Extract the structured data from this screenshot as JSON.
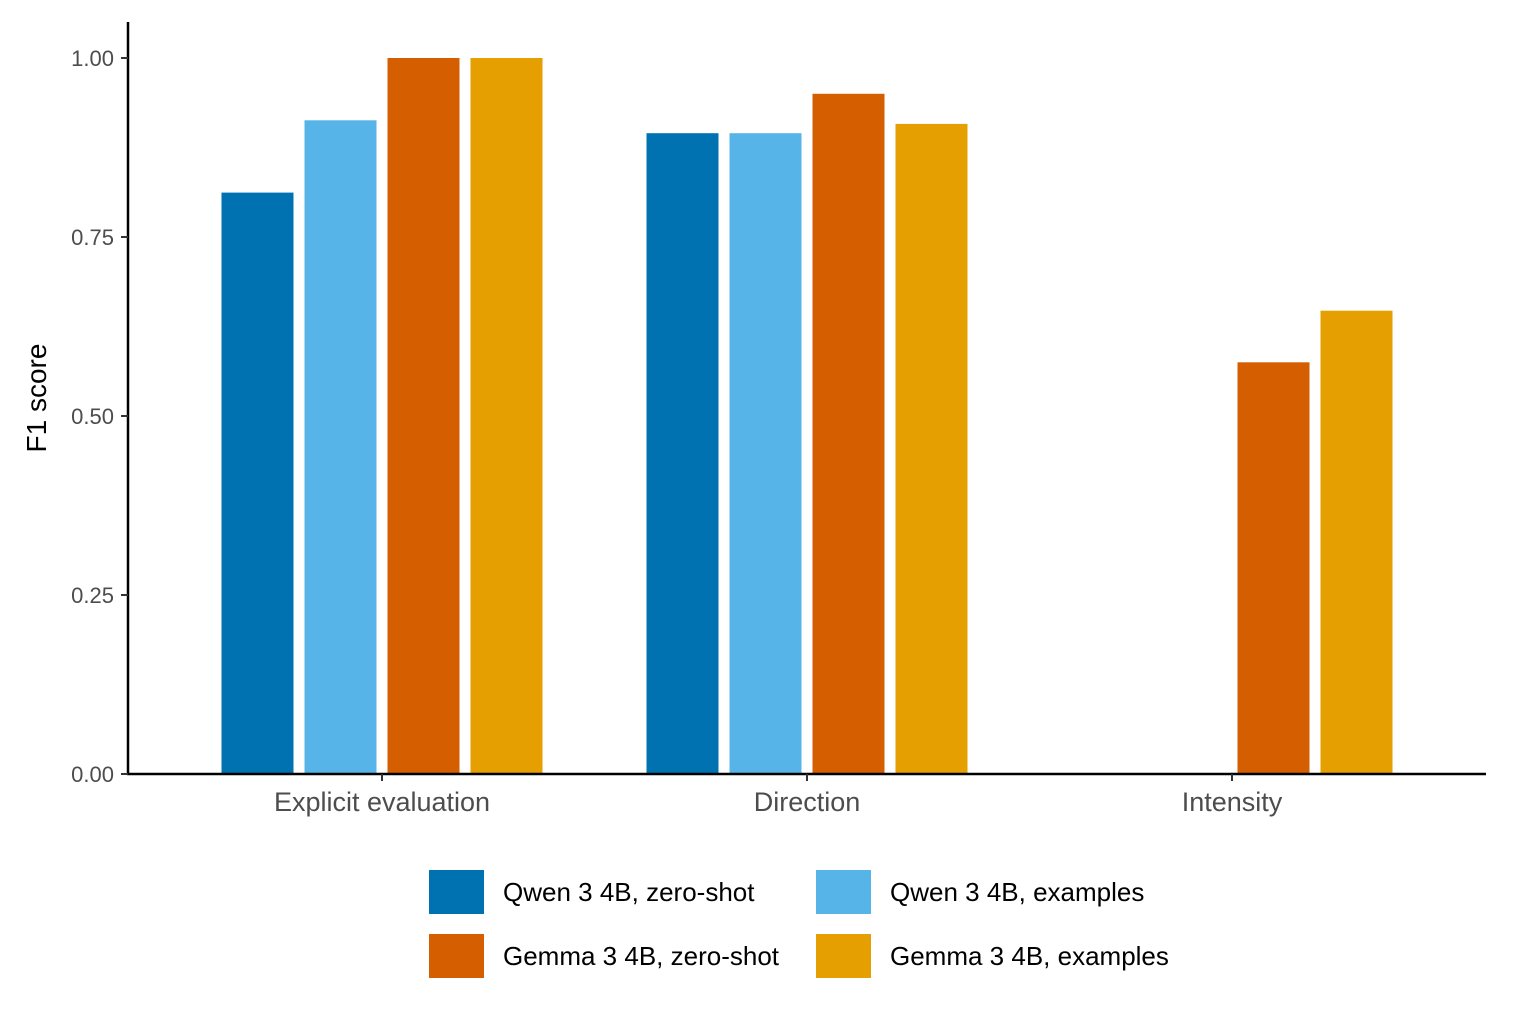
{
  "chart_data": {
    "type": "bar",
    "title": "",
    "xlabel": "",
    "ylabel": "F1 score",
    "ylim": [
      0,
      1.05
    ],
    "yticks": [
      0,
      0.25,
      0.5,
      0.75,
      1.0
    ],
    "ytick_labels": [
      "0.00",
      "0.25",
      "0.50",
      "0.75",
      "1.00"
    ],
    "categories": [
      "Explicit evaluation",
      "Direction",
      "Intensity"
    ],
    "grid": false,
    "legend_position": "bottom",
    "series": [
      {
        "name": "Qwen 3 4B, zero-shot",
        "color": "#0072B2",
        "values": [
          0.812,
          0.895,
          null
        ]
      },
      {
        "name": "Qwen 3 4B, examples",
        "color": "#56B4E9",
        "values": [
          0.913,
          0.895,
          null
        ]
      },
      {
        "name": "Gemma 3 4B, zero-shot",
        "color": "#D55E00",
        "values": [
          1.0,
          0.95,
          0.575
        ]
      },
      {
        "name": "Gemma 3 4B, examples",
        "color": "#E69F00",
        "values": [
          1.0,
          0.908,
          0.647
        ]
      }
    ]
  }
}
